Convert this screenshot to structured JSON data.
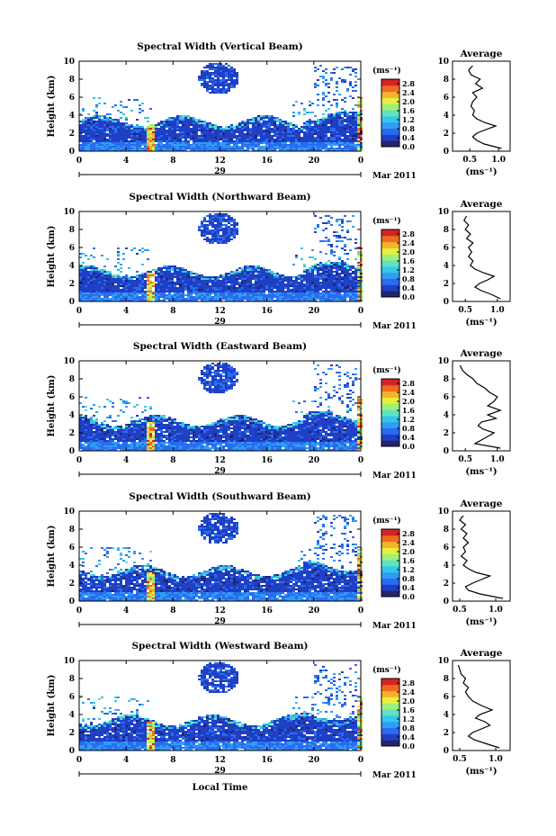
{
  "figure": {
    "xlabel": "Local Time",
    "month_label": "Mar 2011",
    "day_label": "29",
    "unit_label": "(ms⁻¹)",
    "avg_title": "Average",
    "avg_xlabel": "(ms⁻¹)"
  },
  "colormap": [
    "#23246e",
    "#1f3fc4",
    "#2a6cf0",
    "#2f9df5",
    "#33c8e8",
    "#5fe3c0",
    "#9ef07a",
    "#e8ef3c",
    "#f5b32b",
    "#f06a22",
    "#d42424"
  ],
  "chart_data": [
    {
      "type": "heatmap",
      "title": "Spectral Width (Vertical Beam)",
      "xlabel": "Local Time",
      "ylabel": "Height (km)",
      "x_ticks": [
        "0",
        "4",
        "8",
        "12",
        "16",
        "20",
        "0"
      ],
      "y_ticks": [
        "0",
        "2",
        "4",
        "6",
        "8",
        "10"
      ],
      "xlim": [
        0,
        24
      ],
      "ylim": [
        0,
        10
      ],
      "colorbar": {
        "label": "(ms⁻¹)",
        "ticks": [
          "0.0",
          "0.4",
          "0.8",
          "1.2",
          "1.6",
          "2.0",
          "2.4",
          "2.8"
        ],
        "range": [
          0,
          3.0
        ]
      },
      "average_profile": {
        "title": "Average",
        "xlabel": "(ms⁻¹)",
        "x_ticks": [
          "0.5",
          "1.0"
        ],
        "xlim": [
          0.2,
          1.2
        ],
        "height": [
          0.3,
          0.8,
          1.2,
          1.6,
          2.0,
          2.4,
          2.8,
          3.2,
          3.6,
          4.0,
          4.5,
          5.0,
          5.5,
          6.0,
          6.5,
          7.0,
          7.5,
          8.0,
          8.5,
          9.0,
          9.5
        ],
        "width": [
          1.05,
          0.75,
          0.62,
          0.55,
          0.62,
          0.78,
          0.95,
          0.75,
          0.62,
          0.55,
          0.58,
          0.52,
          0.55,
          0.62,
          0.55,
          0.72,
          0.6,
          0.68,
          0.52,
          0.48,
          0.55
        ]
      }
    },
    {
      "type": "heatmap",
      "title": "Spectral Width (Northward Beam)",
      "xlabel": "Local Time",
      "ylabel": "Height (km)",
      "x_ticks": [
        "0",
        "4",
        "8",
        "12",
        "16",
        "20",
        "0"
      ],
      "y_ticks": [
        "0",
        "2",
        "4",
        "6",
        "8",
        "10"
      ],
      "xlim": [
        0,
        24
      ],
      "ylim": [
        0,
        10
      ],
      "colorbar": {
        "label": "(ms⁻¹)",
        "ticks": [
          "0.0",
          "0.4",
          "0.8",
          "1.2",
          "1.6",
          "2.0",
          "2.4",
          "2.8"
        ],
        "range": [
          0,
          3.0
        ]
      },
      "average_profile": {
        "title": "Average",
        "xlabel": "(ms⁻¹)",
        "x_ticks": [
          "0.5",
          "1.0"
        ],
        "xlim": [
          0.3,
          1.2
        ],
        "height": [
          0.3,
          0.8,
          1.2,
          1.6,
          2.0,
          2.4,
          2.8,
          3.2,
          3.6,
          4.0,
          4.5,
          5.0,
          5.5,
          6.0,
          6.5,
          7.0,
          7.5,
          8.0,
          8.5,
          9.0,
          9.5
        ],
        "width": [
          1.05,
          0.9,
          0.75,
          0.65,
          0.72,
          0.85,
          0.95,
          0.78,
          0.65,
          0.58,
          0.62,
          0.55,
          0.6,
          0.55,
          0.62,
          0.52,
          0.58,
          0.5,
          0.55,
          0.48,
          0.52
        ]
      }
    },
    {
      "type": "heatmap",
      "title": "Spectral Width (Eastward Beam)",
      "xlabel": "Local Time",
      "ylabel": "Height (km)",
      "x_ticks": [
        "0",
        "4",
        "8",
        "12",
        "16",
        "20",
        "0"
      ],
      "y_ticks": [
        "0",
        "2",
        "4",
        "6",
        "8",
        "10"
      ],
      "xlim": [
        0,
        24
      ],
      "ylim": [
        0,
        10
      ],
      "colorbar": {
        "label": "(ms⁻¹)",
        "ticks": [
          "0.0",
          "0.4",
          "0.8",
          "1.2",
          "1.6",
          "2.0",
          "2.4",
          "2.8"
        ],
        "range": [
          0,
          3.0
        ]
      },
      "average_profile": {
        "title": "Average",
        "xlabel": "(ms⁻¹)",
        "x_ticks": [
          "0.5",
          "1.0"
        ],
        "xlim": [
          0.3,
          1.2
        ],
        "height": [
          0.3,
          0.8,
          1.2,
          1.6,
          2.0,
          2.4,
          2.8,
          3.2,
          3.6,
          4.0,
          4.5,
          5.0,
          5.5,
          6.0,
          6.5,
          7.0,
          7.5,
          8.0,
          8.5,
          9.0,
          9.5
        ],
        "width": [
          1.05,
          0.65,
          0.75,
          0.85,
          0.95,
          0.78,
          0.7,
          0.75,
          0.98,
          0.85,
          1.05,
          0.85,
          0.95,
          1.0,
          0.88,
          0.8,
          0.68,
          0.62,
          0.52,
          0.45,
          0.42
        ]
      }
    },
    {
      "type": "heatmap",
      "title": "Spectral Width (Southward Beam)",
      "xlabel": "Local Time",
      "ylabel": "Height (km)",
      "x_ticks": [
        "0",
        "4",
        "8",
        "12",
        "16",
        "20",
        "0"
      ],
      "y_ticks": [
        "0",
        "2",
        "4",
        "6",
        "8",
        "10"
      ],
      "xlim": [
        0,
        24
      ],
      "ylim": [
        0,
        10
      ],
      "colorbar": {
        "label": "(ms⁻¹)",
        "ticks": [
          "0.0",
          "0.4",
          "0.8",
          "1.2",
          "1.6",
          "2.0",
          "2.4",
          "2.8"
        ],
        "range": [
          0,
          3.0
        ]
      },
      "average_profile": {
        "title": "Average",
        "xlabel": "(ms⁻¹)",
        "x_ticks": [
          "0.5",
          "1.0"
        ],
        "xlim": [
          0.4,
          1.2
        ],
        "height": [
          0.3,
          0.8,
          1.2,
          1.6,
          2.0,
          2.4,
          2.8,
          3.2,
          3.6,
          4.0,
          4.5,
          5.0,
          5.5,
          6.0,
          6.5,
          7.0,
          7.5,
          8.0,
          8.5,
          9.0,
          9.5
        ],
        "width": [
          1.1,
          0.78,
          0.62,
          0.58,
          0.68,
          0.8,
          0.92,
          0.72,
          0.62,
          0.55,
          0.6,
          0.52,
          0.58,
          0.55,
          0.62,
          0.55,
          0.6,
          0.52,
          0.58,
          0.5,
          0.55
        ]
      }
    },
    {
      "type": "heatmap",
      "title": "Spectral Width (Westward Beam)",
      "xlabel": "Local Time",
      "ylabel": "Height (km)",
      "x_ticks": [
        "0",
        "4",
        "8",
        "12",
        "16",
        "20",
        "0"
      ],
      "y_ticks": [
        "0",
        "2",
        "4",
        "6",
        "8",
        "10"
      ],
      "xlim": [
        0,
        24
      ],
      "ylim": [
        0,
        10
      ],
      "colorbar": {
        "label": "(ms⁻¹)",
        "ticks": [
          "0.0",
          "0.4",
          "0.8",
          "1.2",
          "1.6",
          "2.0",
          "2.4",
          "2.8"
        ],
        "range": [
          0,
          3.0
        ]
      },
      "average_profile": {
        "title": "Average",
        "xlabel": "(ms⁻¹)",
        "x_ticks": [
          "0.5",
          "1.0"
        ],
        "xlim": [
          0.4,
          1.2
        ],
        "height": [
          0.3,
          0.8,
          1.2,
          1.6,
          2.0,
          2.4,
          2.8,
          3.2,
          3.6,
          4.0,
          4.5,
          5.0,
          5.5,
          6.0,
          6.5,
          7.0,
          7.5,
          8.0,
          8.5,
          9.0,
          9.5
        ],
        "width": [
          1.05,
          0.85,
          0.7,
          0.62,
          0.68,
          0.8,
          0.92,
          0.85,
          0.72,
          0.78,
          0.95,
          0.8,
          0.68,
          0.62,
          0.58,
          0.62,
          0.55,
          0.58,
          0.52,
          0.5,
          0.48
        ]
      }
    }
  ]
}
